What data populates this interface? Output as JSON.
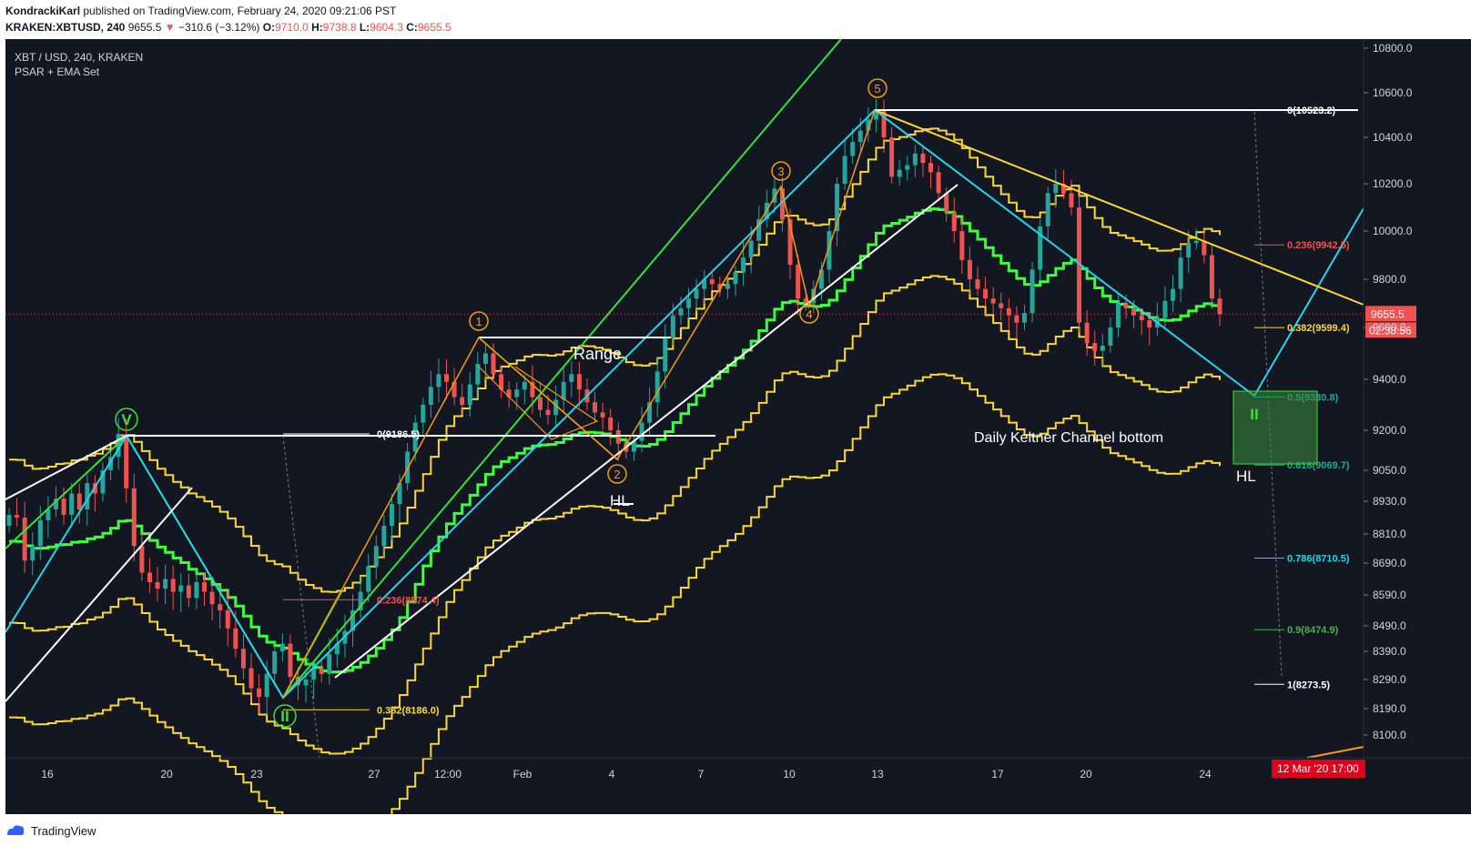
{
  "header": {
    "author": "KondrackiKarl",
    "published": "published on TradingView.com, February 24, 2020 09:21:06 PST",
    "symbol": "KRAKEN:XBTUSD, 240",
    "price": "9655.5",
    "change_arrow": "▼",
    "change": "−310.6 (−3.12%)",
    "o_label": "O:",
    "o": "9710.0",
    "h_label": "H:",
    "h": "9738.8",
    "l_label": "L:",
    "l": "9604.3",
    "c_label": "C:",
    "c": "9655.5"
  },
  "legend": {
    "series": "XBT / USD, 240, KRAKEN",
    "indicator": "PSAR + EMA Set"
  },
  "footer": {
    "brand": "TradingView",
    "icon": "tradingview-logo-icon"
  },
  "colors": {
    "background": "#131722",
    "up": "#26a69a",
    "down": "#ef5350",
    "yellow": "#fdd835",
    "green": "#00e676",
    "cyan": "#29d3ec",
    "orange": "#f39c12",
    "white": "#ffffff",
    "lime": "#39e039"
  },
  "chart_data": {
    "type": "candlestick",
    "title": "XBT / USD, 240, KRAKEN",
    "y_axis": {
      "ticks": [
        {
          "label": "10800.0",
          "value": 10800
        },
        {
          "label": "10600.0",
          "value": 10600
        },
        {
          "label": "10400.0",
          "value": 10400
        },
        {
          "label": "10200.0",
          "value": 10200
        },
        {
          "label": "10000.0",
          "value": 10000
        },
        {
          "label": "9800.0",
          "value": 9800
        },
        {
          "label": "9600.0",
          "value": 9600
        },
        {
          "label": "9400.0",
          "value": 9400
        },
        {
          "label": "9200.0",
          "value": 9200
        },
        {
          "label": "9050.0",
          "value": 9050
        },
        {
          "label": "8930.0",
          "value": 8930
        },
        {
          "label": "8810.0",
          "value": 8810
        },
        {
          "label": "8690.0",
          "value": 8690
        },
        {
          "label": "8590.0",
          "value": 8590
        },
        {
          "label": "8490.0",
          "value": 8490
        },
        {
          "label": "8390.0",
          "value": 8390
        },
        {
          "label": "8290.0",
          "value": 8290
        },
        {
          "label": "8190.0",
          "value": 8190
        },
        {
          "label": "8100.0",
          "value": 8100
        }
      ]
    },
    "x_axis": {
      "ticks": [
        "16",
        "20",
        "23",
        "27",
        "12:00",
        "Feb",
        "4",
        "7",
        "10",
        "13",
        "17",
        "20",
        "24"
      ]
    },
    "last_price": {
      "label": "9655.5",
      "value": 9655.5,
      "countdown": "02:38:56"
    },
    "time_badge": "12 Mar '20   17:00",
    "fib_levels": [
      {
        "label": "0(10523.2)",
        "value": 10523.2
      },
      {
        "label": "0.236(9942.5)",
        "value": 9942.5
      },
      {
        "label": "0.382(9599.4)",
        "value": 9599.4
      },
      {
        "label": "0.5(9330.8)",
        "value": 9330.8
      },
      {
        "label": "0.618(9069.7)",
        "value": 9069.7
      },
      {
        "label": "0.786(8710.5)",
        "value": 8710.5
      },
      {
        "label": "0.9(8474.9)",
        "value": 8474.9
      },
      {
        "label": "1(8273.5)",
        "value": 8273.5
      }
    ],
    "fib_left": [
      {
        "label": "0(9186.5)",
        "value": 9186.5
      },
      {
        "label": "0.236(8574.4)",
        "value": 8574.4
      },
      {
        "label": "0.382(8186.0)",
        "value": 8186.0
      }
    ],
    "wave_labels": [
      "1",
      "2",
      "3",
      "4",
      "5"
    ],
    "major_labels": [
      "V",
      "II",
      "II"
    ],
    "annotations": [
      "Range",
      "HL",
      "HL",
      "Daily Keltner Channel bottom"
    ],
    "closes": [
      8880,
      8870,
      8700,
      8760,
      8860,
      8900,
      8940,
      8880,
      8960,
      8900,
      9000,
      8960,
      9050,
      9100,
      9186,
      8980,
      8760,
      8660,
      8630,
      8610,
      8640,
      8600,
      8620,
      8580,
      8630,
      8600,
      8560,
      8540,
      8480,
      8400,
      8330,
      8260,
      8230,
      8310,
      8390,
      8420,
      8300,
      8270,
      8290,
      8330,
      8310,
      8380,
      8420,
      8470,
      8540,
      8600,
      8680,
      8760,
      8840,
      8920,
      9000,
      9120,
      9230,
      9300,
      9370,
      9420,
      9390,
      9330,
      9300,
      9380,
      9460,
      9500,
      9420,
      9360,
      9330,
      9360,
      9390,
      9330,
      9280,
      9260,
      9320,
      9390,
      9420,
      9360,
      9310,
      9270,
      9250,
      9200,
      9150,
      9120,
      9160,
      9230,
      9310,
      9430,
      9560,
      9650,
      9680,
      9720,
      9760,
      9800,
      9780,
      9760,
      9780,
      9830,
      9890,
      9960,
      10050,
      10120,
      10180,
      10050,
      9860,
      9720,
      9700,
      9760,
      9840,
      10000,
      10200,
      10320,
      10380,
      10430,
      10480,
      10520,
      10400,
      10230,
      10260,
      10280,
      10330,
      10290,
      10250,
      10160,
      10080,
      10000,
      9880,
      9800,
      9760,
      9720,
      9700,
      9680,
      9650,
      9620,
      9660,
      9840,
      10020,
      10160,
      10200,
      10160,
      10100,
      9620,
      9540,
      9510,
      9530,
      9600,
      9700,
      9680,
      9650,
      9630,
      9600,
      9640,
      9710,
      9760,
      9890,
      9950,
      9960,
      9900,
      9720,
      9655.5
    ]
  }
}
